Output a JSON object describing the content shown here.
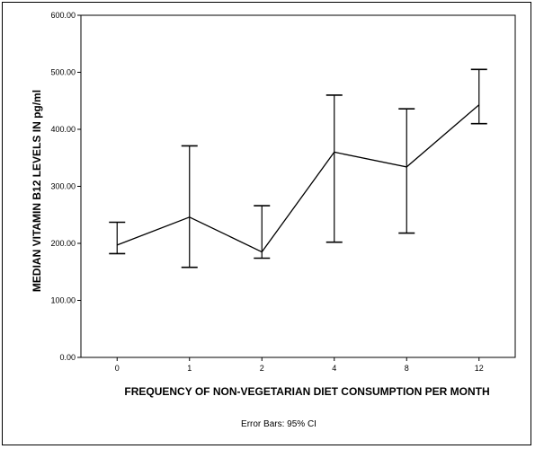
{
  "chart_data": {
    "type": "line",
    "title": "",
    "xlabel": "FREQUENCY OF NON-VEGETARIAN DIET CONSUMPTION PER MONTH",
    "ylabel": "MEDIAN VITAMIN B12 LEVELS IN pg/ml",
    "categories": [
      "0",
      "1",
      "2",
      "4",
      "8",
      "12"
    ],
    "series": [
      {
        "values": [
          197,
          246,
          185,
          360,
          334,
          443
        ],
        "ci_lower": [
          182,
          158,
          174,
          202,
          218,
          410
        ],
        "ci_upper": [
          237,
          371,
          266,
          460,
          436,
          505
        ]
      }
    ],
    "ylim": [
      0,
      600
    ],
    "yticks": [
      "0.00",
      "100.00",
      "200.00",
      "300.00",
      "400.00",
      "500.00",
      "600.00"
    ],
    "error_bar_note": "Error Bars: 95% CI",
    "grid": false,
    "line_color": "#000000"
  }
}
